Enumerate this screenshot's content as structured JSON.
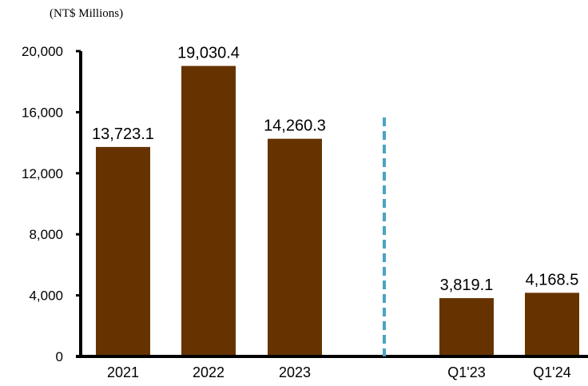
{
  "chart_data": {
    "type": "bar",
    "unit_label": "(NT$ Millions)",
    "categories": [
      "2021",
      "2022",
      "2023",
      "Q1'23",
      "Q1'24"
    ],
    "values": [
      13723.1,
      19030.4,
      14260.3,
      3819.1,
      4168.5
    ],
    "data_labels": [
      "13,723.1",
      "19,030.4",
      "14,260.3",
      "3,819.1",
      "4,168.5"
    ],
    "y_ticks": [
      0,
      4000,
      8000,
      12000,
      16000,
      20000
    ],
    "y_tick_labels": [
      "0",
      "4,000",
      "8,000",
      "12,000",
      "16,000",
      "20,000"
    ],
    "ylim": [
      0,
      20000
    ],
    "grid": false,
    "legend": "none",
    "separator": "dashed vertical line between annual and quarterly bars",
    "colors": {
      "bar": "#663300",
      "separator": "#4aa3c4",
      "axis": "#000000"
    }
  }
}
